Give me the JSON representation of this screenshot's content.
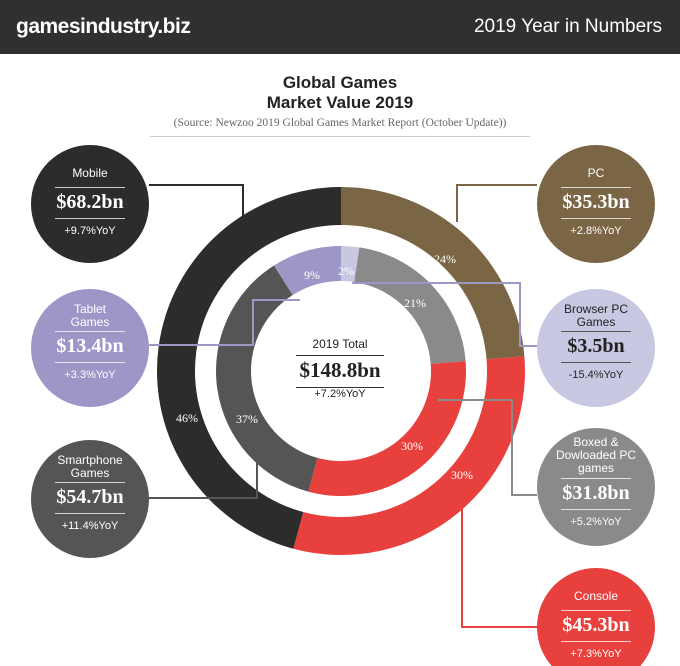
{
  "header": {
    "logo": "gamesindustry.biz",
    "title": "2019 Year in Numbers"
  },
  "chart_data": {
    "type": "donut",
    "title_line1": "Global Games",
    "title_line2": "Market Value 2019",
    "source": "(Source: Newzoo 2019 Global Games Market Report (October Update))",
    "total": {
      "label": "2019 Total",
      "value": "$148.8bn",
      "yoy": "+7.2%YoY"
    },
    "outer_ring": [
      {
        "name": "PC",
        "value": 35.3,
        "value_label": "$35.3bn",
        "yoy": "+2.8%YoY",
        "percent": 24,
        "percent_label": "24%",
        "color": "#7a6645"
      },
      {
        "name": "Console",
        "value": 45.3,
        "value_label": "$45.3bn",
        "yoy": "+7.3%YoY",
        "percent": 30,
        "percent_label": "30%",
        "color": "#e8403c"
      },
      {
        "name": "Mobile",
        "value": 68.2,
        "value_label": "$68.2bn",
        "yoy": "+9.7%YoY",
        "percent": 46,
        "percent_label": "46%",
        "color": "#2c2c2a"
      }
    ],
    "inner_ring": [
      {
        "name": "Browser PC Games",
        "value": 3.5,
        "value_label": "$3.5bn",
        "yoy": "-15.4%YoY",
        "percent": 2,
        "percent_label": "2%",
        "color": "#c9c8e3"
      },
      {
        "name": "Boxed & Dowloaded PC games",
        "value": 31.8,
        "value_label": "$31.8bn",
        "yoy": "+5.2%YoY",
        "percent": 21,
        "percent_label": "21%",
        "color": "#8a8a8a"
      },
      {
        "name": "Console",
        "value": 45.3,
        "percent": 30,
        "percent_label": "30%",
        "color": "#e8403c"
      },
      {
        "name": "Smartphone Games",
        "value": 54.7,
        "value_label": "$54.7bn",
        "yoy": "+11.4%YoY",
        "percent": 37,
        "percent_label": "37%",
        "color": "#555555"
      },
      {
        "name": "Tablet Games",
        "value": 13.4,
        "value_label": "$13.4bn",
        "yoy": "+3.3%YoY",
        "percent": 9,
        "percent_label": "9%",
        "color": "#9d97c8"
      }
    ]
  }
}
